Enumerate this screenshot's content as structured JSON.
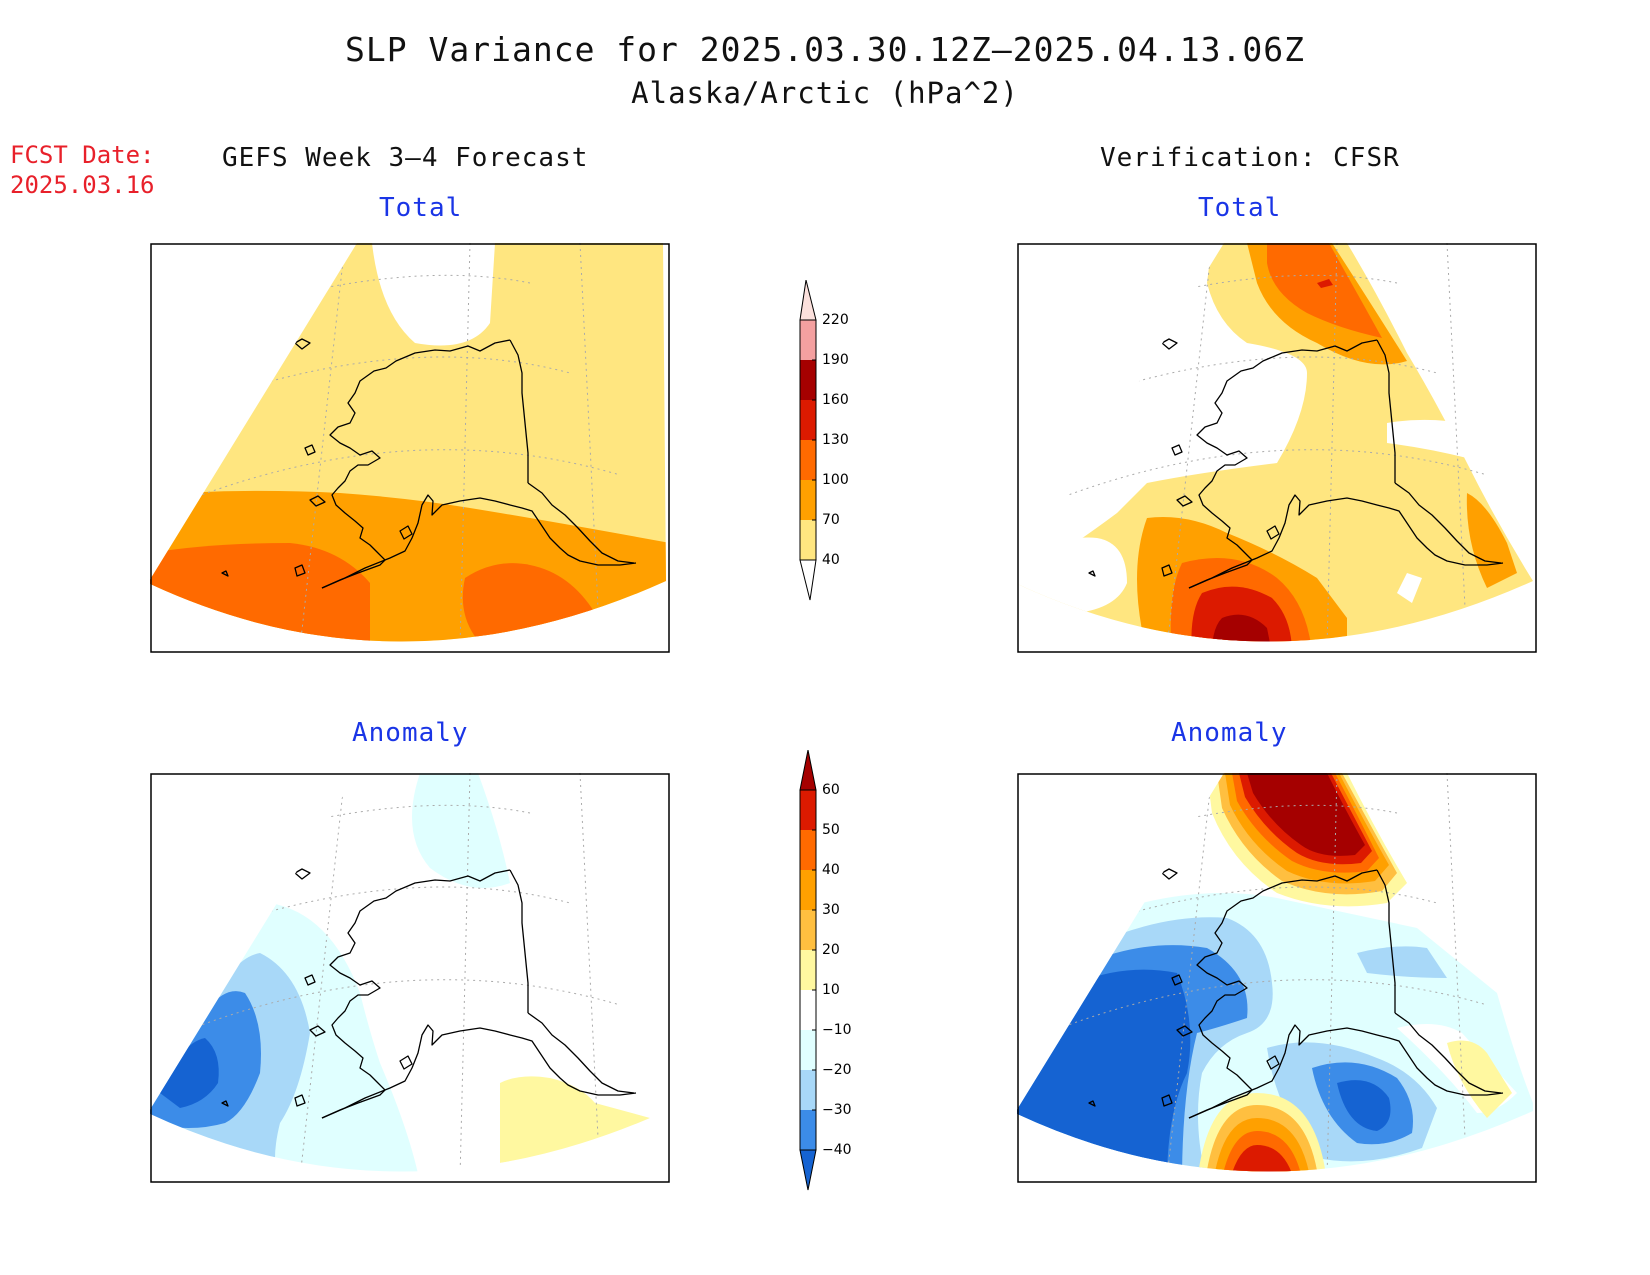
{
  "title": "SLP Variance for 2025.03.30.12Z–2025.04.13.06Z",
  "subtitle": "Alaska/Arctic (hPa^2)",
  "forecast_date": {
    "label": "FCST Date:",
    "value": "2025.03.16"
  },
  "columns": {
    "left": "GEFS Week 3–4 Forecast",
    "right": "Verification: CFSR"
  },
  "panels": {
    "forecast_total": "Total",
    "verification_total": "Total",
    "forecast_anomaly": "Anomaly",
    "verification_anomaly": "Anomaly"
  },
  "colorbar_total": {
    "labels": [
      "220",
      "190",
      "160",
      "130",
      "100",
      "70",
      "40"
    ],
    "colors": [
      "#fbe0dc",
      "#f4a0a0",
      "#a50000",
      "#dc1a00",
      "#ff6a00",
      "#ffa000",
      "#ffe680"
    ]
  },
  "colorbar_anomaly": {
    "labels": [
      "60",
      "50",
      "40",
      "30",
      "20",
      "10",
      "−10",
      "−20",
      "−30",
      "−40"
    ],
    "colors": [
      "#a50000",
      "#dc1a00",
      "#ff6a00",
      "#ffa000",
      "#ffbf40",
      "#fff8a0",
      "#ffffff",
      "#e0ffff",
      "#a8d8f8",
      "#3c8ce8",
      "#1563d2"
    ]
  }
}
